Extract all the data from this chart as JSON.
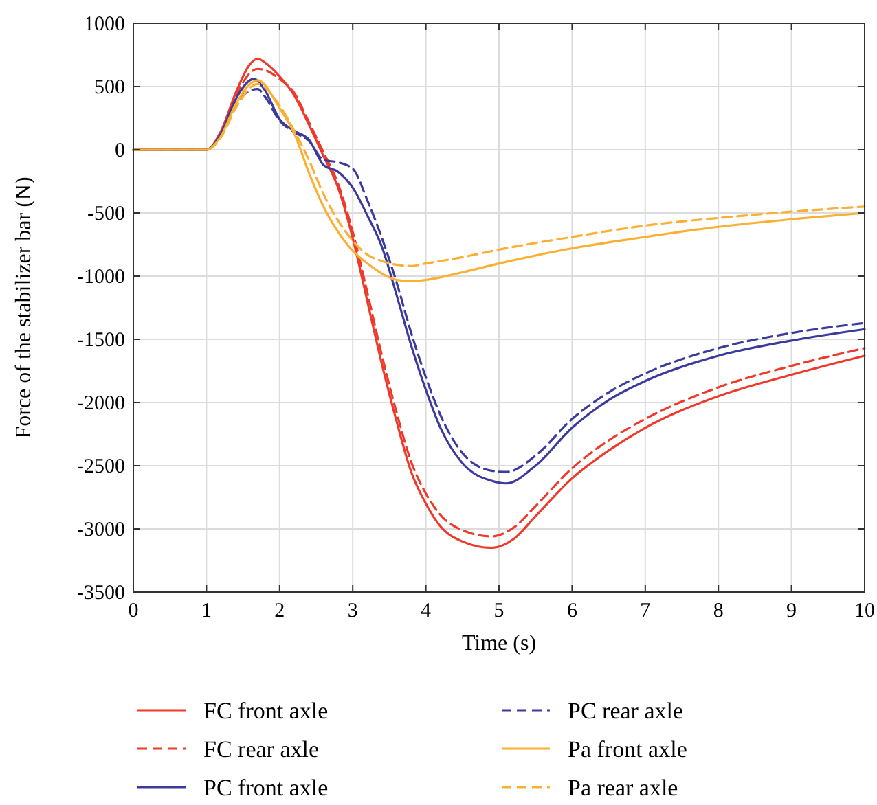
{
  "chart_data": {
    "type": "line",
    "xlabel": "Time (s)",
    "ylabel": "Force of the stabilizer bar (N)",
    "xlim": [
      0,
      10
    ],
    "xticks": [
      0,
      1,
      2,
      3,
      4,
      5,
      6,
      7,
      8,
      9,
      10
    ],
    "ylim": [
      -3500,
      1000
    ],
    "yticks": [
      -3500,
      -3000,
      -2500,
      -2000,
      -1500,
      -1000,
      -500,
      0,
      500,
      1000
    ],
    "grid": true,
    "legend": "bottom",
    "series": [
      {
        "name": "FC front axle",
        "color": "#ee3a2c",
        "line_style": "solid",
        "x": [
          0,
          1,
          1.2,
          1.4,
          1.6,
          1.7,
          1.8,
          2,
          2.2,
          2.4,
          2.6,
          2.8,
          3,
          3.2,
          3.4,
          3.6,
          3.8,
          4,
          4.2,
          4.5,
          4.9,
          5.2,
          5.5,
          6,
          6.5,
          7,
          8,
          9,
          10
        ],
        "values": [
          0,
          0,
          150,
          450,
          680,
          720,
          690,
          580,
          430,
          200,
          -50,
          -300,
          -700,
          -1200,
          -1700,
          -2150,
          -2550,
          -2800,
          -2980,
          -3100,
          -3150,
          -3080,
          -2900,
          -2600,
          -2380,
          -2200,
          -1950,
          -1780,
          -1630
        ]
      },
      {
        "name": "FC rear axle",
        "color": "#ee3a2c",
        "line_style": "dashed",
        "x": [
          0,
          1,
          1.2,
          1.4,
          1.6,
          1.7,
          1.8,
          2,
          2.2,
          2.4,
          2.6,
          2.8,
          3,
          3.2,
          3.4,
          3.6,
          3.8,
          4,
          4.2,
          4.5,
          4.9,
          5.2,
          5.5,
          6,
          6.5,
          7,
          8,
          9,
          10
        ],
        "values": [
          0,
          0,
          140,
          420,
          610,
          640,
          630,
          560,
          450,
          220,
          -20,
          -270,
          -650,
          -1130,
          -1630,
          -2080,
          -2470,
          -2720,
          -2890,
          -3010,
          -3060,
          -2990,
          -2820,
          -2520,
          -2300,
          -2130,
          -1880,
          -1710,
          -1570
        ]
      },
      {
        "name": "PC front axle",
        "color": "#3b3b9e",
        "line_style": "solid",
        "x": [
          0,
          1,
          1.2,
          1.4,
          1.65,
          1.8,
          2,
          2.2,
          2.4,
          2.6,
          2.8,
          3,
          3.2,
          3.4,
          3.6,
          3.8,
          4,
          4.2,
          4.5,
          4.9,
          5.1,
          5.5,
          6,
          6.5,
          7,
          8,
          9,
          10
        ],
        "values": [
          0,
          0,
          130,
          400,
          560,
          470,
          242,
          150,
          80,
          -120,
          -175,
          -300,
          -520,
          -770,
          -1150,
          -1550,
          -1900,
          -2200,
          -2480,
          -2620,
          -2640,
          -2500,
          -2200,
          -1980,
          -1830,
          -1630,
          -1510,
          -1420
        ]
      },
      {
        "name": "PC rear axle",
        "color": "#3b3b9e",
        "line_style": "dashed",
        "x": [
          0,
          1,
          1.2,
          1.4,
          1.7,
          1.8,
          2,
          2.2,
          2.4,
          2.6,
          2.8,
          3,
          3.2,
          3.4,
          3.6,
          3.8,
          4,
          4.2,
          4.5,
          4.9,
          5.1,
          5.5,
          6,
          6.5,
          7,
          8,
          9,
          10
        ],
        "values": [
          0,
          0,
          120,
          370,
          480,
          420,
          230,
          140,
          70,
          -80,
          -100,
          -150,
          -400,
          -700,
          -1050,
          -1450,
          -1800,
          -2100,
          -2400,
          -2540,
          -2550,
          -2420,
          -2130,
          -1920,
          -1770,
          -1570,
          -1450,
          -1370
        ]
      },
      {
        "name": "Pa front axle",
        "color": "#fbb034",
        "line_style": "solid",
        "x": [
          0,
          1,
          1.2,
          1.4,
          1.7,
          2,
          2.2,
          2.4,
          2.6,
          2.8,
          3,
          3.2,
          3.4,
          3.6,
          3.8,
          4,
          4.5,
          5,
          6,
          7,
          8,
          9,
          10
        ],
        "values": [
          0,
          0,
          110,
          360,
          550,
          330,
          130,
          -180,
          -450,
          -650,
          -800,
          -900,
          -980,
          -1030,
          -1040,
          -1030,
          -970,
          -900,
          -780,
          -690,
          -610,
          -550,
          -500
        ]
      },
      {
        "name": "Pa rear axle",
        "color": "#fbb034",
        "line_style": "dashed",
        "x": [
          0,
          1,
          1.2,
          1.4,
          1.7,
          2,
          2.2,
          2.4,
          2.6,
          2.8,
          3,
          3.2,
          3.4,
          3.6,
          3.8,
          4,
          4.5,
          5,
          6,
          7,
          8,
          9,
          10
        ],
        "values": [
          0,
          0,
          100,
          330,
          520,
          350,
          150,
          -80,
          -350,
          -560,
          -720,
          -830,
          -880,
          -910,
          -920,
          -900,
          -850,
          -790,
          -690,
          -600,
          -540,
          -490,
          -450
        ]
      }
    ]
  }
}
